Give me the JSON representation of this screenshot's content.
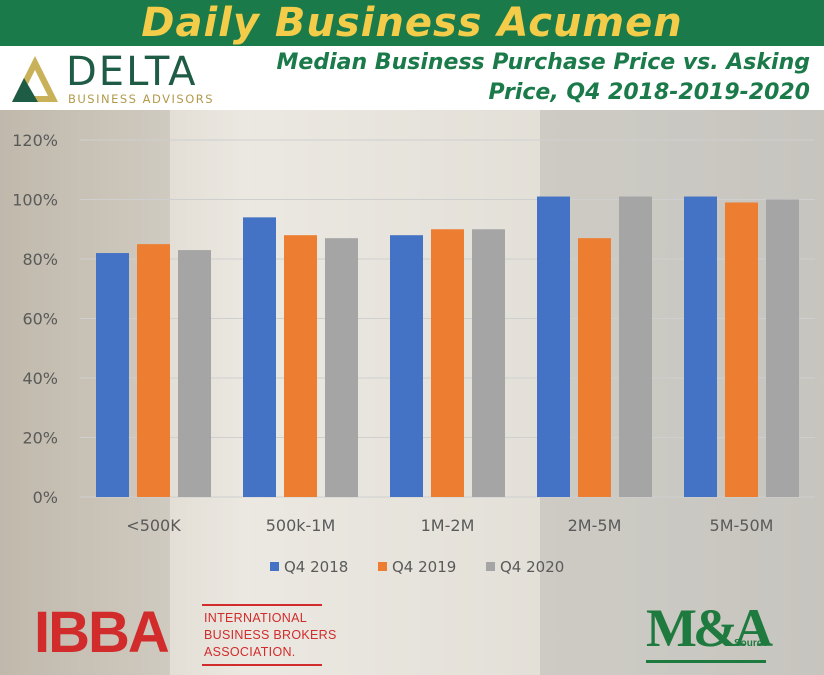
{
  "header": {
    "title": "Daily Business Acumen"
  },
  "logo": {
    "name": "DELTA",
    "subtitle": "BUSINESS ADVISORS"
  },
  "chart_data": {
    "type": "bar",
    "title": "Median Business Purchase Price vs. Asking Price, Q4 2018-2019-2020",
    "categories": [
      "<500K",
      "500k-1M",
      "1M-2M",
      "2M-5M",
      "5M-50M"
    ],
    "series": [
      {
        "name": "Q4 2018",
        "color": "#4472c4",
        "values": [
          82,
          94,
          88,
          101,
          101
        ]
      },
      {
        "name": "Q4 2019",
        "color": "#ed7d31",
        "values": [
          85,
          88,
          90,
          87,
          99
        ]
      },
      {
        "name": "Q4 2020",
        "color": "#a5a5a5",
        "values": [
          83,
          87,
          90,
          101,
          100
        ]
      }
    ],
    "ylim": [
      0,
      120
    ],
    "yticks": [
      "0%",
      "20%",
      "40%",
      "60%",
      "80%",
      "100%",
      "120%"
    ],
    "grid": true,
    "legend": "bottom"
  },
  "footer": {
    "ibba_logo": "IBBA",
    "ibba_name": [
      "INTERNATIONAL",
      "BUSINESS BROKERS",
      "ASSOCIATION."
    ],
    "ma_logo": "M&A",
    "ma_source": "Source"
  }
}
